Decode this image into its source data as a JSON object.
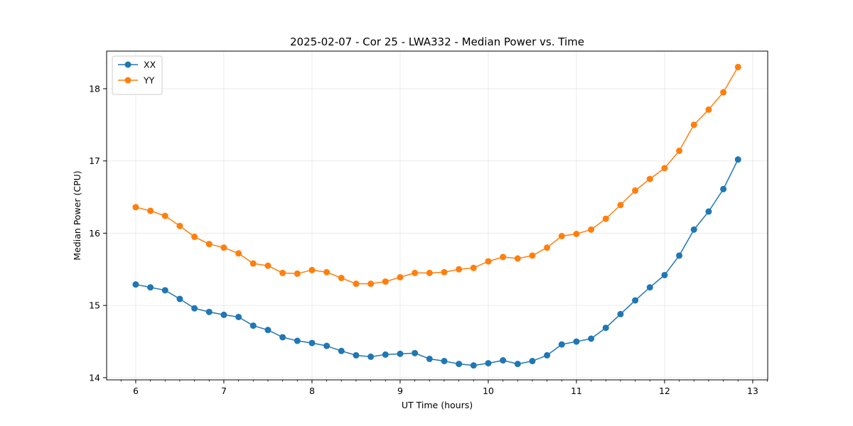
{
  "chart_data": {
    "type": "line",
    "title": "2025-02-07 - Cor 25 - LWA332 - Median Power vs. Time",
    "xlabel": "UT Time (hours)",
    "ylabel": "Median Power (CPU)",
    "xlim": [
      5.67,
      13.17
    ],
    "ylim": [
      13.97,
      18.52
    ],
    "xticks": [
      6,
      7,
      8,
      9,
      10,
      11,
      12,
      13
    ],
    "yticks": [
      14,
      15,
      16,
      17,
      18
    ],
    "grid": true,
    "legend_position": "top-left",
    "x": [
      6.0,
      6.1667,
      6.3333,
      6.5,
      6.6667,
      6.8333,
      7.0,
      7.1667,
      7.3333,
      7.5,
      7.6667,
      7.8333,
      8.0,
      8.1667,
      8.3333,
      8.5,
      8.6667,
      8.8333,
      9.0,
      9.1667,
      9.3333,
      9.5,
      9.6667,
      9.8333,
      10.0,
      10.1667,
      10.3333,
      10.5,
      10.6667,
      10.8333,
      11.0,
      11.1667,
      11.3333,
      11.5,
      11.6667,
      11.8333,
      12.0,
      12.1667,
      12.3333,
      12.5,
      12.6667,
      12.8333
    ],
    "series": [
      {
        "name": "XX",
        "color": "#1f77b4",
        "values": [
          15.29,
          15.25,
          15.21,
          15.09,
          14.96,
          14.91,
          14.87,
          14.84,
          14.72,
          14.66,
          14.56,
          14.51,
          14.48,
          14.44,
          14.37,
          14.31,
          14.29,
          14.32,
          14.33,
          14.34,
          14.26,
          14.23,
          14.19,
          14.17,
          14.2,
          14.24,
          14.19,
          14.23,
          14.31,
          14.46,
          14.5,
          14.54,
          14.69,
          14.88,
          15.07,
          15.25,
          15.42,
          15.69,
          16.05,
          16.3,
          16.61,
          17.02
        ]
      },
      {
        "name": "YY",
        "color": "#ff7f0e",
        "values": [
          16.36,
          16.31,
          16.24,
          16.1,
          15.95,
          15.85,
          15.8,
          15.72,
          15.58,
          15.55,
          15.45,
          15.44,
          15.49,
          15.46,
          15.38,
          15.3,
          15.3,
          15.33,
          15.39,
          15.45,
          15.45,
          15.46,
          15.5,
          15.52,
          15.61,
          15.67,
          15.65,
          15.69,
          15.8,
          15.96,
          15.99,
          16.05,
          16.2,
          16.39,
          16.59,
          16.75,
          16.9,
          17.14,
          17.5,
          17.71,
          17.95,
          18.3
        ]
      }
    ]
  }
}
